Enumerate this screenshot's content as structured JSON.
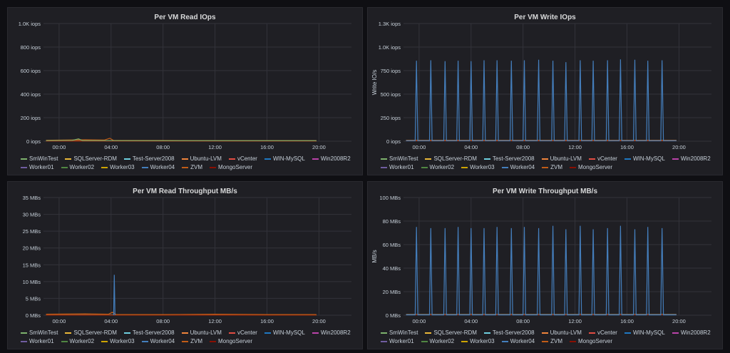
{
  "panels": [
    {
      "title": "Per VM Read IOps"
    },
    {
      "title": "Per VM Write IOps"
    },
    {
      "title": "Per VM Read Throughput MB/s"
    },
    {
      "title": "Per VM Write Throughput MB/s"
    }
  ],
  "legend": [
    {
      "label": "SmWinTest",
      "color": "#7eb26d"
    },
    {
      "label": "SQLServer-RDM",
      "color": "#eab839"
    },
    {
      "label": "Test-Server2008",
      "color": "#6ed0e0"
    },
    {
      "label": "Ubuntu-LVM",
      "color": "#ef843c"
    },
    {
      "label": "vCenter",
      "color": "#e24d42"
    },
    {
      "label": "WIN-MySQL",
      "color": "#1f78c1"
    },
    {
      "label": "Win2008R2",
      "color": "#ba43a9"
    },
    {
      "label": "Worker01",
      "color": "#705da0"
    },
    {
      "label": "Worker02",
      "color": "#508642"
    },
    {
      "label": "Worker03",
      "color": "#cca300"
    },
    {
      "label": "Worker04",
      "color": "#447ebc"
    },
    {
      "label": "ZVM",
      "color": "#c15c17"
    },
    {
      "label": "MongoServer",
      "color": "#890f02"
    }
  ],
  "chart_data": [
    {
      "type": "line",
      "title": "Per VM Read IOps",
      "ylabel": "",
      "yticks": [
        "0 iops",
        "200 iops",
        "400 iops",
        "600 iops",
        "800 iops",
        "1.0K iops"
      ],
      "ylim": [
        0,
        1000
      ],
      "xticks": [
        "00:00",
        "04:00",
        "08:00",
        "12:00",
        "16:00",
        "20:00"
      ],
      "xlim": [
        -1.2,
        22.5
      ],
      "x_range_hours": [
        -1,
        19.8
      ],
      "series": [
        {
          "name": "ZVM",
          "points": [
            [
              -1,
              8
            ],
            [
              2,
              12
            ],
            [
              3.5,
              10
            ],
            [
              3.9,
              25
            ],
            [
              4.2,
              6
            ],
            [
              8,
              6
            ],
            [
              12,
              5
            ],
            [
              16,
              5
            ],
            [
              19.8,
              5
            ]
          ]
        },
        {
          "name": "SmWinTest",
          "points": [
            [
              -1,
              5
            ],
            [
              1,
              7
            ],
            [
              1.5,
              20
            ],
            [
              1.8,
              5
            ],
            [
              8,
              4
            ],
            [
              19.8,
              4
            ]
          ]
        }
      ]
    },
    {
      "type": "line",
      "title": "Per VM Write IOps",
      "ylabel": "Write IO/s",
      "yticks": [
        "0 iops",
        "250 iops",
        "500 iops",
        "750 iops",
        "1.0K iops",
        "1.3K iops"
      ],
      "ylim": [
        0,
        1250
      ],
      "xticks": [
        "00:00",
        "04:00",
        "08:00",
        "12:00",
        "16:00",
        "20:00"
      ],
      "xlim": [
        -1.2,
        22.5
      ],
      "x_range_hours": [
        -1,
        19.8
      ],
      "spike_series": "Worker04",
      "spike_times": [
        -0.2,
        0.9,
        2,
        3,
        4,
        5,
        6,
        7.1,
        8.1,
        9.2,
        10.3,
        11.3,
        12.4,
        13.4,
        14.5,
        15.5,
        16.6,
        17.6,
        18.7
      ],
      "spike_values": [
        855,
        860,
        850,
        855,
        850,
        860,
        860,
        855,
        860,
        865,
        855,
        840,
        860,
        855,
        860,
        870,
        865,
        855,
        860
      ],
      "baseline_value": 5
    },
    {
      "type": "line",
      "title": "Per VM Read Throughput MB/s",
      "ylabel": "",
      "yticks": [
        "0 MBs",
        "5 MBs",
        "10 MBs",
        "15 MBs",
        "20 MBs",
        "25 MBs",
        "30 MBs",
        "35 MBs"
      ],
      "ylim": [
        0,
        35
      ],
      "xticks": [
        "00:00",
        "04:00",
        "08:00",
        "12:00",
        "16:00",
        "20:00"
      ],
      "xlim": [
        -1.2,
        22.5
      ],
      "x_range_hours": [
        -1,
        19.8
      ],
      "series": [
        {
          "name": "ZVM",
          "points": [
            [
              -1,
              0.3
            ],
            [
              2,
              0.4
            ],
            [
              3.8,
              0.3
            ],
            [
              4.1,
              0.9
            ],
            [
              4.4,
              0.2
            ],
            [
              8,
              0.2
            ],
            [
              12,
              0.3
            ],
            [
              16,
              0.2
            ],
            [
              19.8,
              0.2
            ]
          ]
        },
        {
          "name": "Worker04",
          "points": [
            [
              4.2,
              0
            ],
            [
              4.25,
              12
            ],
            [
              4.3,
              0
            ]
          ]
        }
      ]
    },
    {
      "type": "line",
      "title": "Per VM Write Throughput MB/s",
      "ylabel": "MB/s",
      "yticks": [
        "0 MBs",
        "20 MBs",
        "40 MBs",
        "60 MBs",
        "80 MBs",
        "100 MBs"
      ],
      "ylim": [
        0,
        100
      ],
      "xticks": [
        "00:00",
        "04:00",
        "08:00",
        "12:00",
        "16:00",
        "20:00"
      ],
      "xlim": [
        -1.2,
        22.5
      ],
      "x_range_hours": [
        -1,
        19.8
      ],
      "spike_series": "Worker04",
      "spike_times": [
        -0.2,
        0.9,
        2,
        3,
        4,
        5,
        6,
        7.1,
        8.1,
        9.2,
        10.3,
        11.3,
        12.4,
        13.4,
        14.5,
        15.5,
        16.6,
        17.6,
        18.7
      ],
      "spike_values": [
        75,
        74,
        74,
        75,
        74,
        74,
        75,
        74,
        75,
        74,
        76,
        73,
        76,
        73,
        74,
        76,
        73,
        75,
        74
      ],
      "baseline_value": 0.3
    }
  ]
}
